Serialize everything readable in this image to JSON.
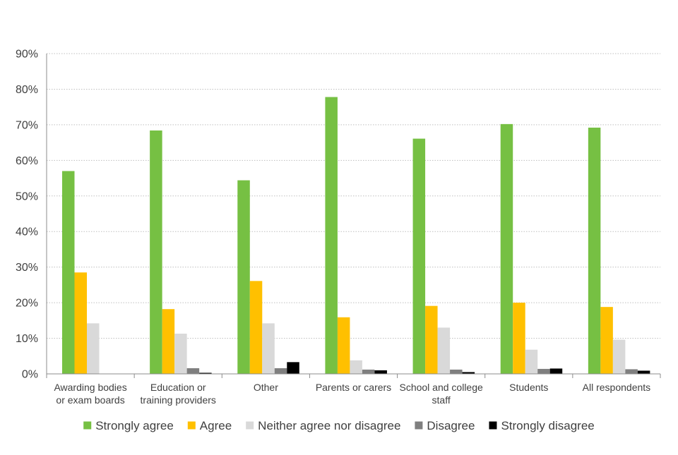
{
  "chart_data": {
    "type": "bar",
    "categories": [
      [
        "Awarding bodies",
        "or exam boards"
      ],
      [
        "Education or",
        "training providers"
      ],
      [
        "Other"
      ],
      [
        "Parents or carers"
      ],
      [
        "School and college",
        "staff"
      ],
      [
        "Students"
      ],
      [
        "All respondents"
      ]
    ],
    "series": [
      {
        "name": "Strongly agree",
        "color": "#76c043",
        "values": [
          57.0,
          68.4,
          54.4,
          77.8,
          66.1,
          70.2,
          69.2
        ]
      },
      {
        "name": "Agree",
        "color": "#ffc000",
        "values": [
          28.5,
          18.2,
          26.1,
          15.9,
          19.1,
          20.0,
          18.8
        ]
      },
      {
        "name": "Neither agree nor disagree",
        "color": "#d9d9d9",
        "values": [
          14.2,
          11.3,
          14.2,
          3.8,
          13.0,
          6.8,
          9.6
        ]
      },
      {
        "name": "Disagree",
        "color": "#7f7f7f",
        "values": [
          0,
          1.6,
          1.6,
          1.2,
          1.2,
          1.4,
          1.3
        ]
      },
      {
        "name": "Strongly disagree",
        "color": "#000000",
        "values": [
          0,
          0.3,
          3.3,
          1.0,
          0.5,
          1.5,
          0.9
        ]
      }
    ],
    "title": "",
    "xlabel": "",
    "ylabel": "",
    "ylim": [
      0,
      90
    ],
    "yticks": [
      "0%",
      "10%",
      "20%",
      "30%",
      "40%",
      "50%",
      "60%",
      "70%",
      "80%",
      "90%"
    ],
    "ytick_values": [
      0,
      10,
      20,
      30,
      40,
      50,
      60,
      70,
      80,
      90
    ],
    "grid": true,
    "legend_position": "bottom"
  }
}
